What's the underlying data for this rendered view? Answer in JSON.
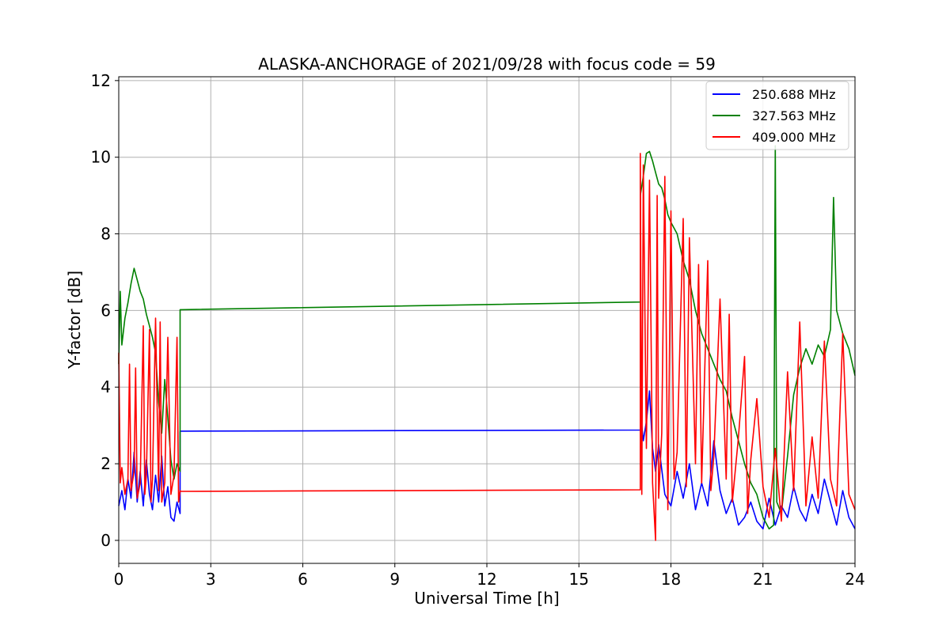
{
  "chart_data": {
    "type": "line",
    "title": "ALASKA-ANCHORAGE of 2021/09/28 with focus code = 59",
    "xlabel": "Universal Time [h]",
    "ylabel": "Y-factor [dB]",
    "xlim": [
      0,
      24
    ],
    "ylim": [
      -0.6,
      12.1
    ],
    "xticks": [
      0,
      3,
      6,
      9,
      12,
      15,
      18,
      21,
      24
    ],
    "yticks": [
      0,
      2,
      4,
      6,
      8,
      10,
      12
    ],
    "xtick_labels": [
      "0",
      "3",
      "6",
      "9",
      "12",
      "15",
      "18",
      "21",
      "24"
    ],
    "ytick_labels": [
      "0",
      "2",
      "4",
      "6",
      "8",
      "10",
      "12"
    ],
    "grid": true,
    "legend_position": "top-right",
    "series": [
      {
        "name": "250.688 MHz",
        "color": "#0000ff",
        "x": [
          0.0,
          0.1,
          0.2,
          0.3,
          0.4,
          0.5,
          0.6,
          0.7,
          0.8,
          0.9,
          1.0,
          1.1,
          1.2,
          1.3,
          1.4,
          1.5,
          1.6,
          1.7,
          1.8,
          1.9,
          2.0,
          2.0,
          17.0,
          17.0,
          17.1,
          17.2,
          17.3,
          17.4,
          17.5,
          17.6,
          17.8,
          18.0,
          18.2,
          18.4,
          18.6,
          18.8,
          19.0,
          19.2,
          19.4,
          19.6,
          19.8,
          20.0,
          20.2,
          20.4,
          20.6,
          20.8,
          21.0,
          21.2,
          21.4,
          21.6,
          21.8,
          22.0,
          22.2,
          22.4,
          22.6,
          22.8,
          23.0,
          23.2,
          23.4,
          23.6,
          23.8,
          24.0
        ],
        "values": [
          0.9,
          1.3,
          0.8,
          1.6,
          1.1,
          2.3,
          1.0,
          1.8,
          0.9,
          2.1,
          1.2,
          0.8,
          1.7,
          1.0,
          2.2,
          0.9,
          1.4,
          0.6,
          0.5,
          1.0,
          0.7,
          2.85,
          2.88,
          3.4,
          2.6,
          3.1,
          3.9,
          2.4,
          1.8,
          2.5,
          1.2,
          0.9,
          1.8,
          1.1,
          2.0,
          0.8,
          1.5,
          0.9,
          2.6,
          1.3,
          0.7,
          1.1,
          0.4,
          0.6,
          1.0,
          0.5,
          0.3,
          1.1,
          0.4,
          0.9,
          0.6,
          1.4,
          0.8,
          0.5,
          1.2,
          0.7,
          1.6,
          1.0,
          0.4,
          1.3,
          0.6,
          0.3
        ]
      },
      {
        "name": "327.563 MHz",
        "color": "#008000",
        "x": [
          0.0,
          0.05,
          0.1,
          0.2,
          0.3,
          0.4,
          0.5,
          0.6,
          0.7,
          0.8,
          0.9,
          1.0,
          1.1,
          1.2,
          1.3,
          1.4,
          1.5,
          1.6,
          1.7,
          1.8,
          1.9,
          2.0,
          2.0,
          17.0,
          17.0,
          17.1,
          17.2,
          17.3,
          17.4,
          17.5,
          17.6,
          17.7,
          17.8,
          17.9,
          18.0,
          18.2,
          18.4,
          18.6,
          18.8,
          19.0,
          19.2,
          19.4,
          19.6,
          19.8,
          20.0,
          20.2,
          20.4,
          20.6,
          20.8,
          21.0,
          21.2,
          21.35,
          21.4,
          21.45,
          21.6,
          21.8,
          22.0,
          22.2,
          22.4,
          22.6,
          22.8,
          23.0,
          23.2,
          23.3,
          23.4,
          23.6,
          23.8,
          24.0
        ],
        "values": [
          4.6,
          6.5,
          5.1,
          5.8,
          6.2,
          6.7,
          7.1,
          6.8,
          6.5,
          6.3,
          5.9,
          5.6,
          5.3,
          4.9,
          3.6,
          2.8,
          4.2,
          3.2,
          2.1,
          1.6,
          2.0,
          1.8,
          6.02,
          6.22,
          9.0,
          9.5,
          10.1,
          10.15,
          9.9,
          9.6,
          9.3,
          9.2,
          8.9,
          8.5,
          8.3,
          8.0,
          7.3,
          6.8,
          6.0,
          5.4,
          5.0,
          4.6,
          4.2,
          3.9,
          3.2,
          2.6,
          2.0,
          1.5,
          1.2,
          0.6,
          0.3,
          0.4,
          10.3,
          1.0,
          0.7,
          2.2,
          3.8,
          4.5,
          5.0,
          4.6,
          5.1,
          4.8,
          5.5,
          8.95,
          6.0,
          5.4,
          5.0,
          4.3
        ]
      },
      {
        "name": "409.000 MHz",
        "color": "#ff0000",
        "x": [
          0.0,
          0.05,
          0.1,
          0.2,
          0.3,
          0.35,
          0.4,
          0.5,
          0.55,
          0.6,
          0.7,
          0.8,
          0.85,
          0.9,
          1.0,
          1.05,
          1.1,
          1.2,
          1.3,
          1.35,
          1.4,
          1.5,
          1.6,
          1.7,
          1.8,
          1.9,
          1.95,
          2.0,
          2.0,
          17.0,
          17.0,
          17.05,
          17.1,
          17.2,
          17.3,
          17.4,
          17.5,
          17.55,
          17.6,
          17.7,
          17.8,
          17.9,
          18.0,
          18.1,
          18.2,
          18.4,
          18.5,
          18.6,
          18.8,
          18.9,
          19.0,
          19.2,
          19.3,
          19.4,
          19.6,
          19.8,
          19.9,
          20.0,
          20.2,
          20.4,
          20.5,
          20.6,
          20.8,
          21.0,
          21.2,
          21.4,
          21.6,
          21.8,
          22.0,
          22.2,
          22.4,
          22.6,
          22.8,
          23.0,
          23.2,
          23.4,
          23.6,
          23.8,
          24.0
        ],
        "values": [
          4.9,
          1.5,
          1.9,
          1.2,
          1.6,
          4.6,
          1.3,
          1.8,
          4.5,
          1.1,
          1.5,
          5.6,
          1.2,
          1.7,
          5.5,
          1.0,
          1.6,
          5.8,
          1.3,
          5.7,
          1.0,
          1.5,
          5.3,
          1.2,
          1.7,
          5.3,
          1.0,
          1.3,
          1.28,
          1.32,
          10.1,
          1.2,
          9.8,
          2.4,
          9.4,
          1.5,
          0.0,
          9.0,
          1.1,
          2.8,
          9.5,
          0.8,
          8.6,
          1.6,
          2.3,
          8.4,
          1.4,
          7.9,
          2.0,
          7.2,
          1.5,
          7.3,
          1.3,
          2.2,
          6.3,
          1.6,
          5.9,
          1.0,
          2.7,
          4.8,
          0.7,
          2.1,
          3.7,
          1.4,
          0.6,
          2.4,
          0.5,
          4.4,
          1.3,
          5.7,
          0.9,
          2.7,
          1.1,
          5.2,
          1.6,
          0.9,
          5.4,
          1.2,
          0.8
        ]
      }
    ]
  }
}
